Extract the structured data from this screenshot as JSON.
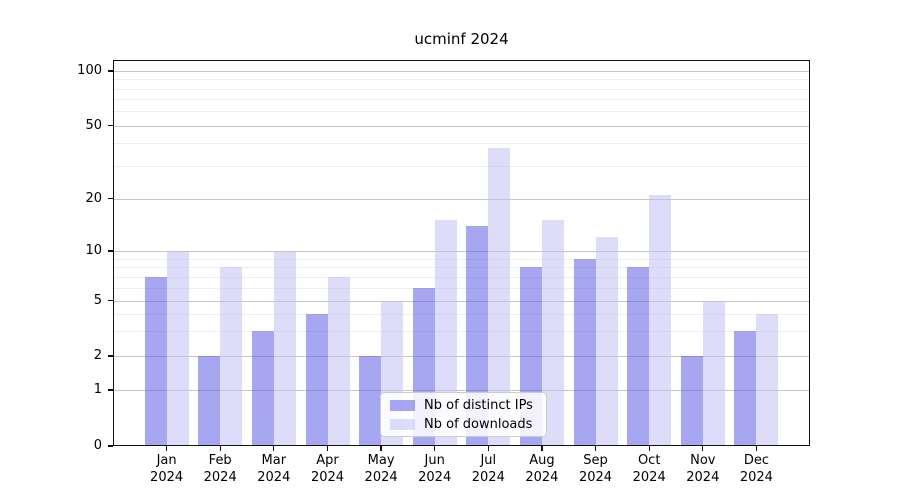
{
  "title": "ucminf 2024",
  "chart_data": {
    "type": "bar",
    "title": "ucminf 2024",
    "categories": [
      "Jan 2024",
      "Feb 2024",
      "Mar 2024",
      "Apr 2024",
      "May 2024",
      "Jun 2024",
      "Jul 2024",
      "Aug 2024",
      "Sep 2024",
      "Oct 2024",
      "Nov 2024",
      "Dec 2024"
    ],
    "series": [
      {
        "name": "Nb of distinct IPs",
        "color_hex": "#a6a6f1",
        "fill": "rgba(93,93,230,0.55)",
        "values": [
          7,
          2,
          3,
          4,
          2,
          6,
          14,
          8,
          9,
          8,
          2,
          3
        ]
      },
      {
        "name": "Nb of downloads",
        "color_hex": "#dcdcfa",
        "fill": "rgba(193,193,246,0.55)",
        "values": [
          10,
          8,
          10,
          7,
          5,
          15,
          38,
          15,
          12,
          21,
          5,
          4
        ]
      }
    ],
    "yticks": [
      0,
      1,
      2,
      5,
      10,
      20,
      50,
      100
    ],
    "minor_gridlines": [
      3,
      4,
      6,
      7,
      8,
      9,
      30,
      40,
      60,
      70,
      80,
      90
    ],
    "ylim": [
      0,
      110
    ],
    "yscale": "log-like custom (labeled 1,2,5,10,20,50,100 plus 0 baseline)",
    "grid": true,
    "legend_position": "lower center",
    "xlabel": "",
    "ylabel": ""
  }
}
